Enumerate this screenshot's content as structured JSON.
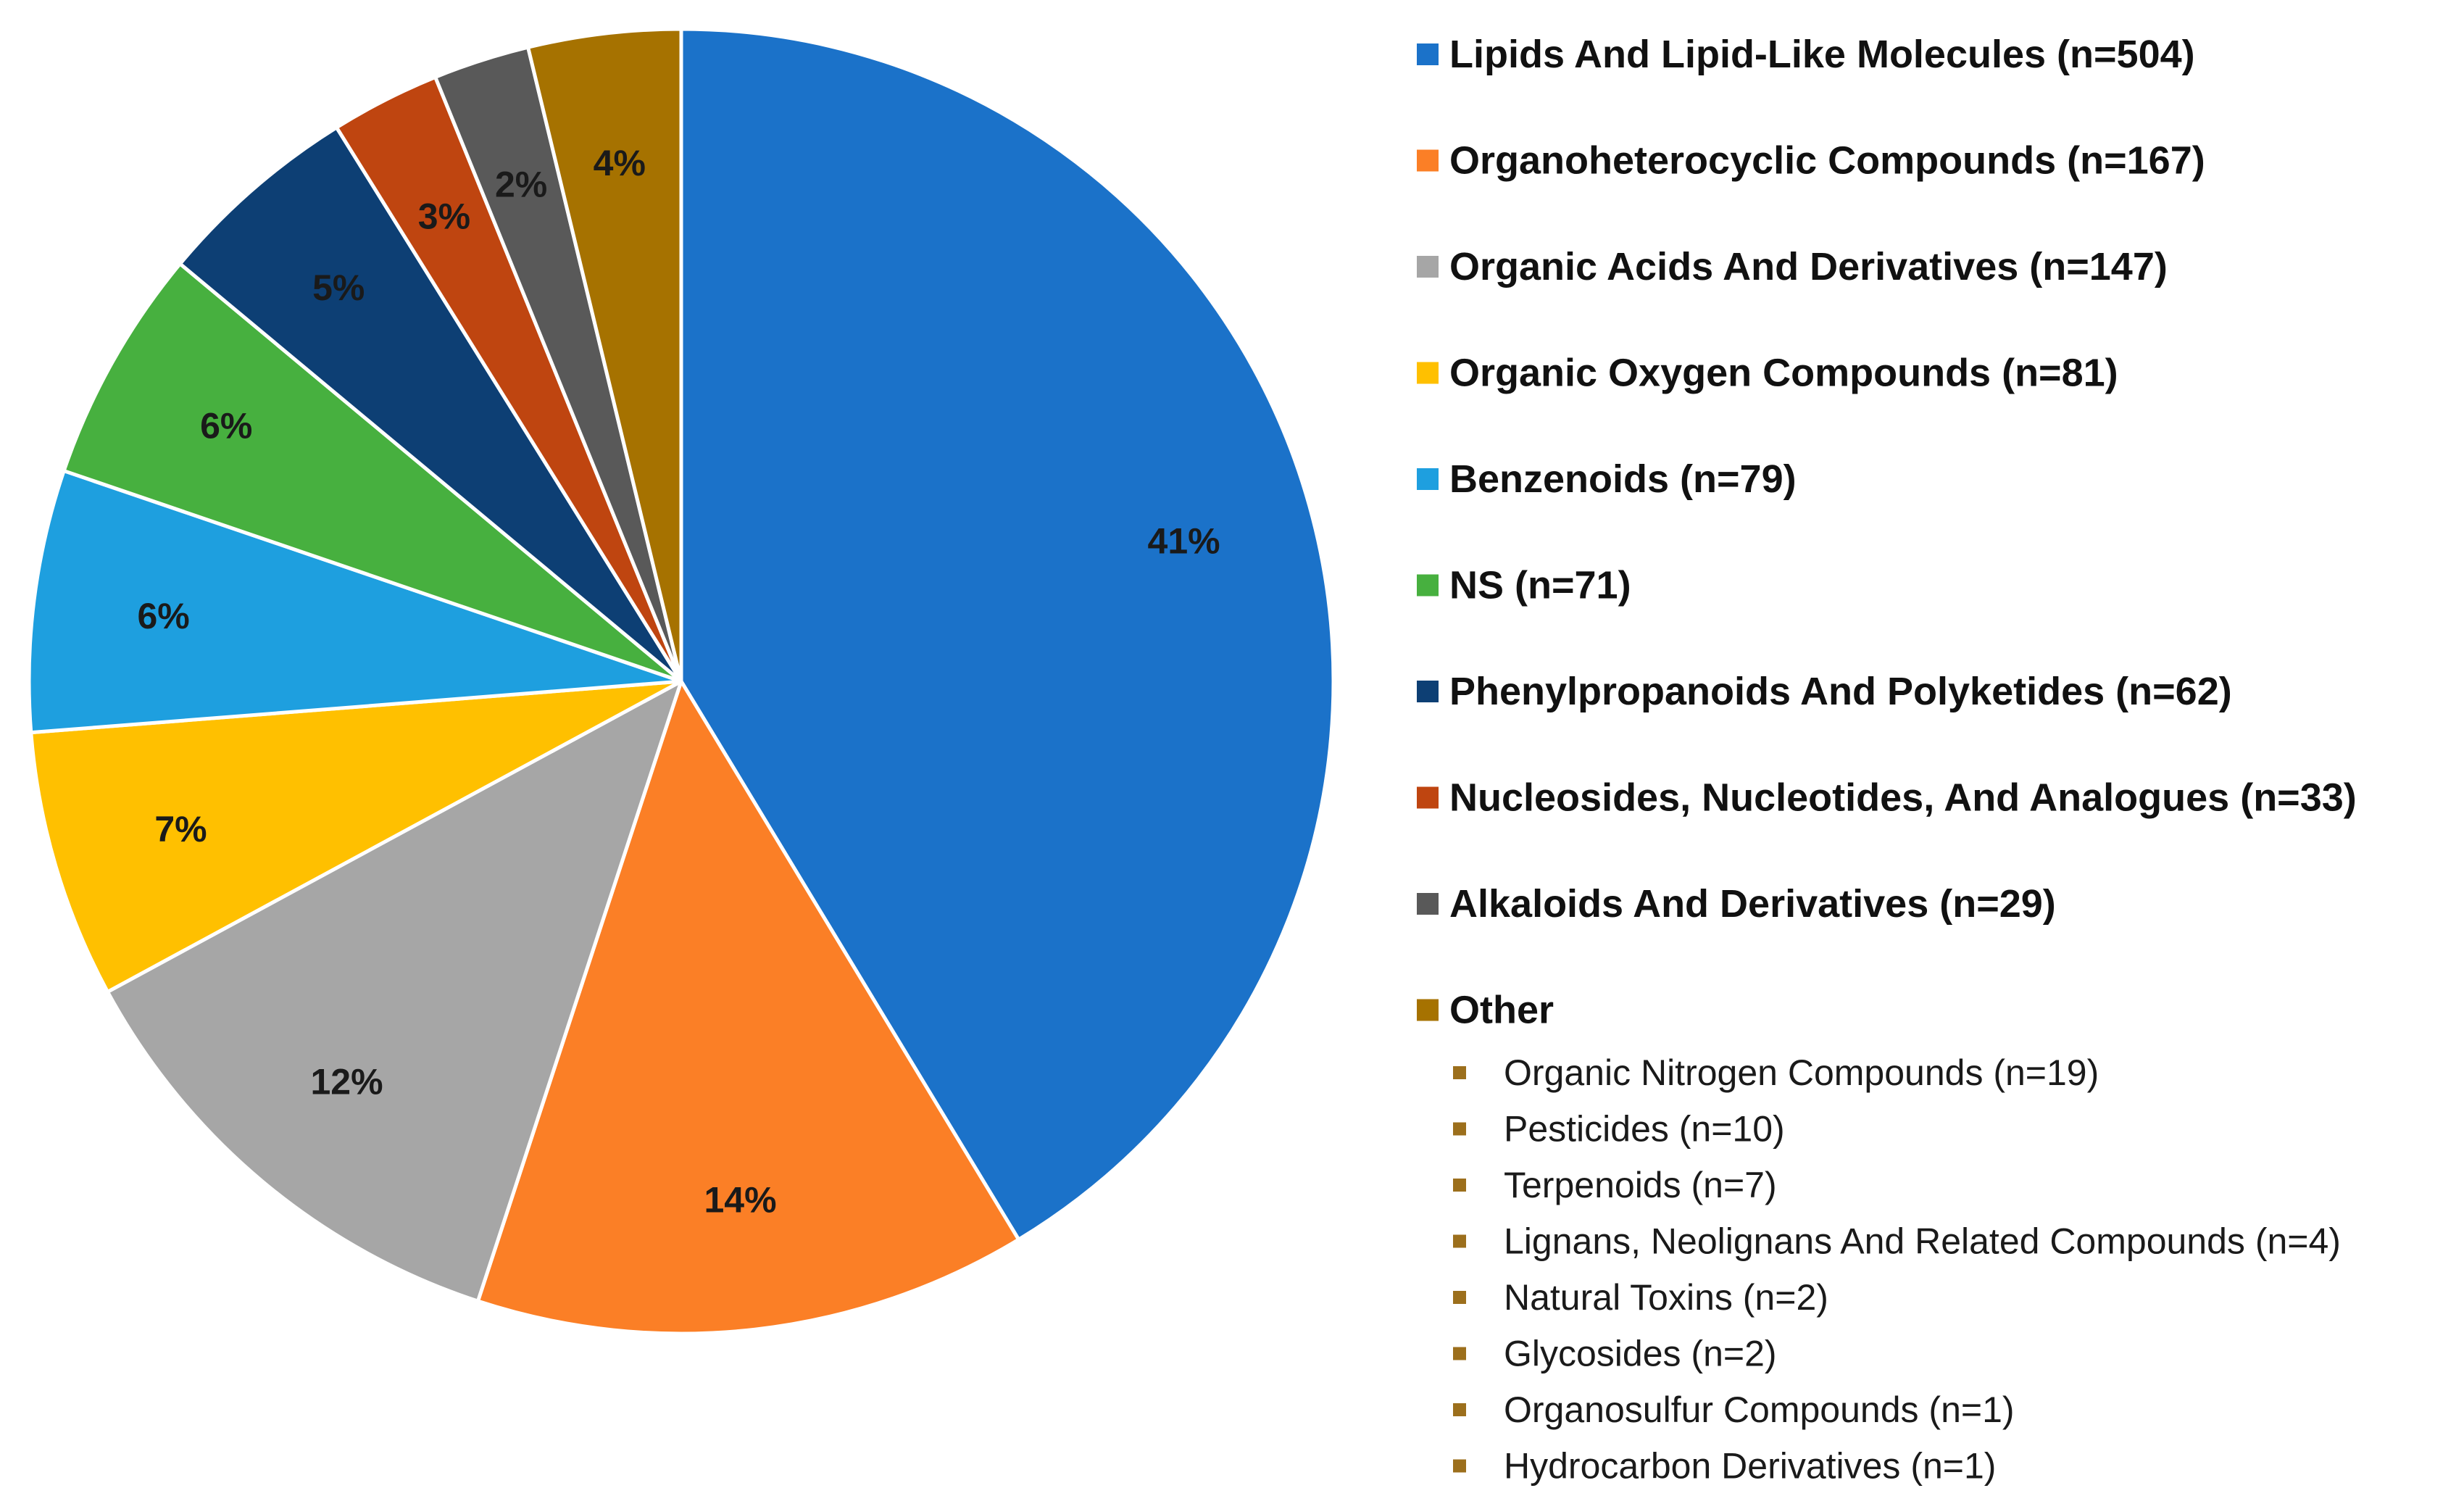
{
  "chart_data": {
    "type": "pie",
    "title": "",
    "start_angle_deg": 0,
    "direction": "clockwise",
    "legend_position": "right",
    "slices": [
      {
        "name": "Lipids And Lipid-Like Molecules (n=504)",
        "value": 504,
        "label": "41%",
        "color": "#1b72c9"
      },
      {
        "name": "Organoheterocyclic Compounds (n=167)",
        "value": 167,
        "label": "14%",
        "color": "#fb7f26"
      },
      {
        "name": "Organic Acids And Derivatives (n=147)",
        "value": 147,
        "label": "12%",
        "color": "#a6a6a6"
      },
      {
        "name": "Organic Oxygen Compounds (n=81)",
        "value": 81,
        "label": "7%",
        "color": "#ffc000"
      },
      {
        "name": "Benzenoids (n=79)",
        "value": 79,
        "label": "6%",
        "color": "#1e9fdf"
      },
      {
        "name": "NS (n=71)",
        "value": 71,
        "label": "6%",
        "color": "#47b03f"
      },
      {
        "name": "Phenylpropanoids And Polyketides (n=62)",
        "value": 62,
        "label": "5%",
        "color": "#0d3f74"
      },
      {
        "name": "Nucleosides, Nucleotides, And Analogues (n=33)",
        "value": 33,
        "label": "3%",
        "color": "#bf4510"
      },
      {
        "name": "Alkaloids And Derivatives (n=29)",
        "value": 29,
        "label": "2%",
        "color": "#595959"
      },
      {
        "name": "Other",
        "value": 46,
        "label": "4%",
        "color": "#a67200"
      }
    ],
    "other_breakdown": {
      "bullet_color": "#9c6f1c",
      "items": [
        "Organic Nitrogen Compounds (n=19)",
        "Pesticides (n=10)",
        "Terpenoids (n=7)",
        "Lignans, Neolignans And Related Compounds (n=4)",
        "Natural Toxins (n=2)",
        "Glycosides (n=2)",
        "Organosulfur Compounds (n=1)",
        "Hydrocarbon Derivatives (n=1)"
      ]
    }
  }
}
